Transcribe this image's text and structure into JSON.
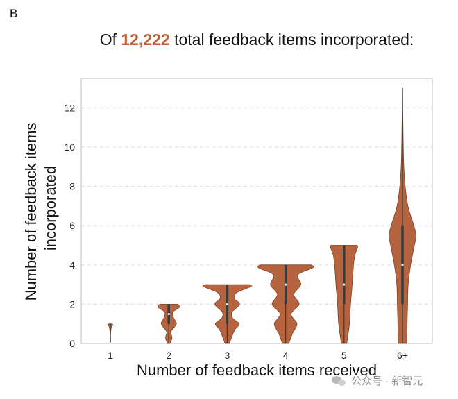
{
  "panel_label": "B",
  "title": {
    "prefix": "Of ",
    "highlight": "12,222",
    "suffix": " total feedback items incorporated:",
    "highlight_color": "#c0623a"
  },
  "watermark": {
    "text": "公众号 · 新智元",
    "icon": "wechat-icon"
  },
  "chart_data": {
    "type": "violin",
    "title": "Of 12,222 total feedback items incorporated:",
    "xlabel": "Number of feedback items received",
    "ylabel": "Number of feedback items incorporated",
    "categories": [
      "1",
      "2",
      "3",
      "4",
      "5",
      "6+"
    ],
    "ylim": [
      0,
      13.5
    ],
    "yticks": [
      0,
      2,
      4,
      6,
      8,
      10,
      12
    ],
    "grid": true,
    "violin_color": "#b5643f",
    "inner_box_color": "#3a3a3a",
    "violins": [
      {
        "category": "1",
        "min": 0,
        "max": 1,
        "q1": 0,
        "median": 0,
        "q3": 0,
        "density": [
          [
            0,
            0.01
          ],
          [
            0.2,
            0.01
          ],
          [
            0.5,
            0.01
          ],
          [
            0.85,
            0.04
          ],
          [
            0.95,
            0.1
          ],
          [
            1.0,
            0.06
          ]
        ]
      },
      {
        "category": "2",
        "min": 0,
        "max": 2,
        "q1": 1,
        "median": 1.5,
        "q3": 2,
        "density": [
          [
            0,
            0.05
          ],
          [
            0.3,
            0.12
          ],
          [
            0.6,
            0.08
          ],
          [
            1.0,
            0.28
          ],
          [
            1.3,
            0.18
          ],
          [
            1.6,
            0.15
          ],
          [
            1.85,
            0.4
          ],
          [
            2.0,
            0.32
          ]
        ]
      },
      {
        "category": "3",
        "min": 0,
        "max": 3,
        "q1": 1,
        "median": 2,
        "q3": 3,
        "density": [
          [
            0,
            0.08
          ],
          [
            0.3,
            0.16
          ],
          [
            0.7,
            0.28
          ],
          [
            1.0,
            0.44
          ],
          [
            1.3,
            0.2
          ],
          [
            1.6,
            0.18
          ],
          [
            2.0,
            0.46
          ],
          [
            2.3,
            0.26
          ],
          [
            2.6,
            0.36
          ],
          [
            2.9,
            0.88
          ],
          [
            3.0,
            0.82
          ]
        ]
      },
      {
        "category": "4",
        "min": 0,
        "max": 4,
        "q1": 2,
        "median": 3,
        "q3": 4,
        "density": [
          [
            0,
            0.12
          ],
          [
            0.5,
            0.25
          ],
          [
            1.0,
            0.42
          ],
          [
            1.5,
            0.2
          ],
          [
            2.0,
            0.5
          ],
          [
            2.5,
            0.3
          ],
          [
            3.0,
            0.56
          ],
          [
            3.5,
            0.45
          ],
          [
            3.85,
            1.0
          ],
          [
            4.0,
            0.95
          ]
        ]
      },
      {
        "category": "5",
        "min": 0,
        "max": 5,
        "q1": 2,
        "median": 3,
        "q3": 5,
        "density": [
          [
            0,
            0.1
          ],
          [
            1.0,
            0.2
          ],
          [
            2.0,
            0.24
          ],
          [
            3.0,
            0.3
          ],
          [
            4.0,
            0.35
          ],
          [
            4.5,
            0.4
          ],
          [
            4.9,
            0.5
          ],
          [
            5.0,
            0.48
          ]
        ]
      },
      {
        "category": "6+",
        "min": 0,
        "max": 13,
        "q1": 2,
        "median": 4,
        "q3": 6,
        "density": [
          [
            0,
            0.15
          ],
          [
            1.0,
            0.17
          ],
          [
            2.0,
            0.19
          ],
          [
            3.0,
            0.21
          ],
          [
            4.0,
            0.3
          ],
          [
            5.0,
            0.44
          ],
          [
            5.5,
            0.5
          ],
          [
            6.0,
            0.42
          ],
          [
            7.0,
            0.2
          ],
          [
            8.0,
            0.1
          ],
          [
            9.0,
            0.05
          ],
          [
            10.0,
            0.03
          ],
          [
            11.0,
            0.02
          ],
          [
            12.0,
            0.01
          ],
          [
            13.0,
            0.005
          ]
        ]
      }
    ]
  }
}
